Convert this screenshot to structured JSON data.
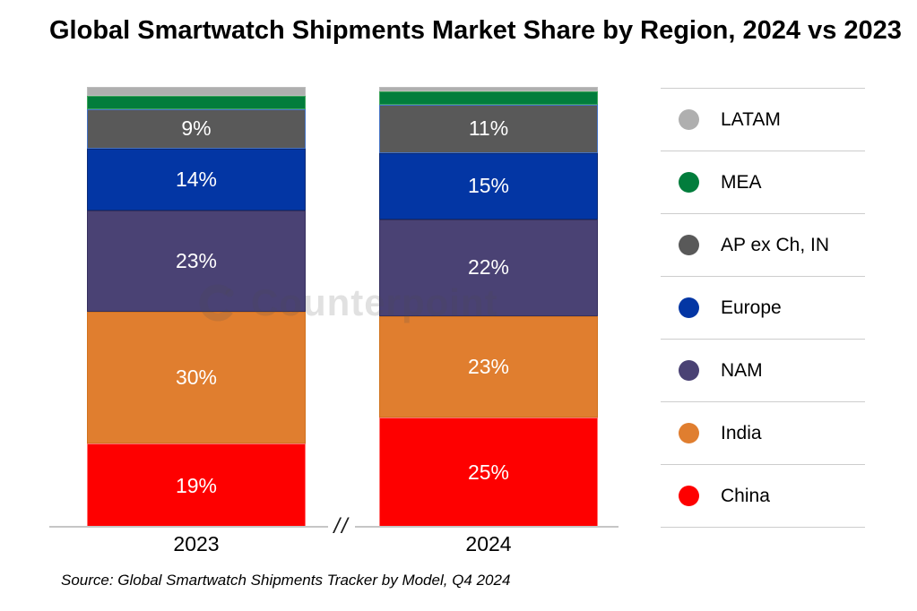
{
  "title": "Global Smartwatch Shipments Market Share by Region, 2024 vs 2023",
  "source_note": "Source: Global Smartwatch Shipments Tracker by Model, Q4 2024",
  "watermark_text": "Counterpoint",
  "axis_break_symbol": "//",
  "colors": {
    "china_red": "#FE0000",
    "india_orange": "#E07E2F",
    "nam_purple": "#4A4274",
    "europe_blue": "#0336A4",
    "ap_gray": "#595959",
    "mea_green": "#027D3C",
    "latam_gray": "#AFAFAF",
    "axis_line": "#C6C6C6",
    "legend_divider": "#CDCDCD"
  },
  "chart_data": {
    "type": "bar",
    "subtype": "stacked-100-percent",
    "title": "Global Smartwatch Shipments Market Share by Region, 2024 vs 2023",
    "categories": [
      "2023",
      "2024"
    ],
    "value_unit": "%",
    "ylim": [
      0,
      100
    ],
    "grid": false,
    "legend_position": "right",
    "legend_order_top_to_bottom": [
      "LATAM",
      "MEA",
      "AP ex Ch, IN",
      "Europe",
      "NAM",
      "India",
      "China"
    ],
    "stack_order_bottom_to_top": [
      "China",
      "India",
      "NAM",
      "Europe",
      "AP ex Ch, IN",
      "MEA",
      "LATAM"
    ],
    "series": [
      {
        "name": "China",
        "color": "#FE0000",
        "values": [
          19,
          25
        ],
        "labels": [
          "19%",
          "25%"
        ]
      },
      {
        "name": "India",
        "color": "#E07E2F",
        "values": [
          30,
          23
        ],
        "labels": [
          "30%",
          "23%"
        ]
      },
      {
        "name": "NAM",
        "color": "#4A4274",
        "values": [
          23,
          22
        ],
        "labels": [
          "23%",
          "22%"
        ]
      },
      {
        "name": "Europe",
        "color": "#0336A4",
        "values": [
          14,
          15
        ],
        "labels": [
          "14%",
          "15%"
        ]
      },
      {
        "name": "AP ex Ch, IN",
        "color": "#595959",
        "values": [
          9,
          11
        ],
        "labels": [
          "9%",
          "11%"
        ]
      },
      {
        "name": "MEA",
        "color": "#027D3C",
        "values": [
          3,
          3
        ],
        "labels": [
          "",
          ""
        ]
      },
      {
        "name": "LATAM",
        "color": "#AFAFAF",
        "values": [
          2,
          1
        ],
        "labels": [
          "",
          ""
        ]
      }
    ],
    "notes": "MEA and LATAM segments are unlabeled in the chart; values estimated from segment heights."
  }
}
